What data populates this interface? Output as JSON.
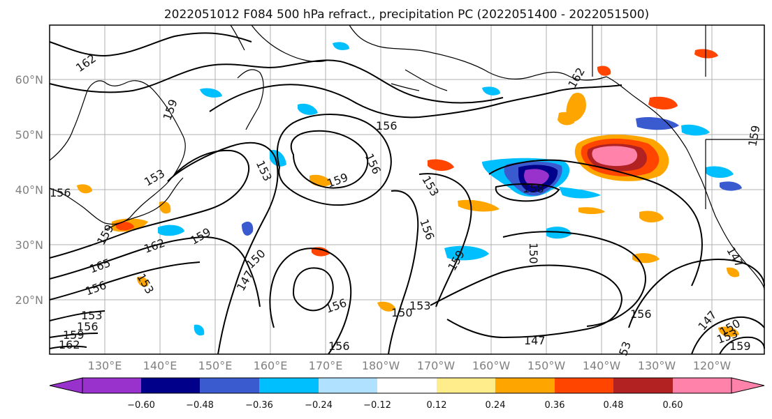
{
  "title": "2022051012 F084 500 hPa refract., precipitation PC (2022051400 - 2022051500)",
  "map": {
    "lat_labels": [
      "60°N",
      "50°N",
      "40°N",
      "30°N",
      "20°N"
    ],
    "lon_labels": [
      "130°E",
      "140°E",
      "150°E",
      "160°E",
      "170°E",
      "180°W",
      "170°W",
      "160°W",
      "150°W",
      "140°W",
      "130°W",
      "120°W"
    ],
    "contour_labels": [
      "162",
      "159",
      "153",
      "156",
      "159",
      "153",
      "156",
      "153",
      "156",
      "159",
      "162",
      "150",
      "147",
      "159",
      "153",
      "156",
      "153",
      "156",
      "147",
      "150",
      "162",
      "159",
      "165",
      "156",
      "153",
      "156",
      "159",
      "162",
      "158",
      "150",
      "156",
      "159",
      "147",
      "156",
      "153",
      "150",
      "53",
      "147",
      "159"
    ]
  },
  "colorbar": {
    "tick_labels": [
      "−0.60",
      "−0.48",
      "−0.36",
      "−0.24",
      "−0.12",
      "0.12",
      "0.24",
      "0.36",
      "0.48",
      "0.60"
    ],
    "colors": [
      "#9932cc",
      "#00008b",
      "#3a5bd0",
      "#00bfff",
      "#b0e2ff",
      "#ffffff",
      "#ffec8b",
      "#ffa500",
      "#ff4500",
      "#b22222",
      "#ff82ab"
    ]
  }
}
